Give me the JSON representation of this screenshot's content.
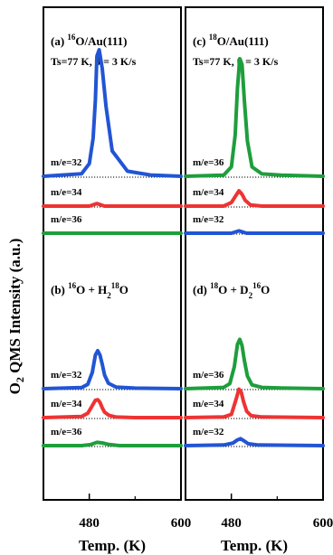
{
  "ylabel_main": "O",
  "ylabel_sub": "2",
  "ylabel_rest": " QMS Intensity (a.u.)",
  "chart_data": [
    {
      "type": "line",
      "figure_panel": "a",
      "title_parts": [
        "(a) ",
        "16",
        "O/Au(111)"
      ],
      "subtitle": "Ts=77 K, β = 3 K/s",
      "xlabel": "Temp. (K)",
      "xlim": [
        420,
        600
      ],
      "xticks": [
        "480",
        "600"
      ],
      "y_units": "arbitrary (a.u.)",
      "series": [
        {
          "name": "m/e=32",
          "color": "#2255d4",
          "baseline": 0,
          "x": [
            420,
            470,
            480,
            485,
            488,
            490,
            493,
            497,
            502,
            510,
            530,
            560,
            600
          ],
          "values": [
            0.0,
            0.02,
            0.1,
            0.3,
            0.6,
            0.95,
            1.0,
            0.85,
            0.55,
            0.2,
            0.04,
            0.01,
            0.0
          ]
        },
        {
          "name": "m/e=34",
          "color": "#ee3333",
          "baseline": 0,
          "x": [
            420,
            480,
            490,
            500,
            600
          ],
          "values": [
            0.0,
            0.0,
            0.02,
            0.0,
            0.0
          ]
        },
        {
          "name": "m/e=36",
          "color": "#1e9e3c",
          "baseline": 0,
          "x": [
            420,
            600
          ],
          "values": [
            0.0,
            0.0
          ]
        }
      ]
    },
    {
      "type": "line",
      "figure_panel": "b",
      "title_parts": [
        "(b) ",
        "16",
        "O + H",
        "2",
        "18",
        "O"
      ],
      "xlabel": "Temp. (K)",
      "xlim": [
        420,
        600
      ],
      "xticks": [
        "480",
        "600"
      ],
      "y_units": "arbitrary (a.u.)",
      "series": [
        {
          "name": "m/e=32",
          "color": "#2255d4",
          "baseline": 0,
          "x": [
            420,
            470,
            478,
            484,
            488,
            491,
            494,
            497,
            500,
            505,
            515,
            540,
            600
          ],
          "values": [
            0.0,
            0.02,
            0.08,
            0.3,
            0.62,
            0.7,
            0.62,
            0.45,
            0.25,
            0.1,
            0.03,
            0.01,
            0.0
          ]
        },
        {
          "name": "m/e=34",
          "color": "#ee3333",
          "baseline": 0,
          "x": [
            420,
            470,
            478,
            484,
            488,
            491,
            494,
            497,
            500,
            506,
            515,
            540,
            600
          ],
          "values": [
            0.0,
            0.02,
            0.08,
            0.22,
            0.32,
            0.33,
            0.28,
            0.18,
            0.1,
            0.04,
            0.01,
            0.0,
            0.0
          ]
        },
        {
          "name": "m/e=36",
          "color": "#1e9e3c",
          "baseline": 0,
          "x": [
            420,
            470,
            482,
            490,
            497,
            506,
            520,
            600
          ],
          "values": [
            0.0,
            0.0,
            0.02,
            0.06,
            0.05,
            0.02,
            0.0,
            0.0
          ]
        }
      ]
    },
    {
      "type": "line",
      "figure_panel": "c",
      "title_parts": [
        "(c) ",
        "18",
        "O/Au(111)"
      ],
      "subtitle": "Ts=77 K, β = 3 K/s",
      "xlabel": "Temp. (K)",
      "xlim": [
        420,
        600
      ],
      "xticks": [
        "480",
        "600"
      ],
      "y_units": "arbitrary (a.u.)",
      "series": [
        {
          "name": "m/e=36",
          "color": "#1e9e3c",
          "baseline": 0,
          "x": [
            420,
            470,
            480,
            485,
            488,
            491,
            494,
            497,
            501,
            507,
            520,
            545,
            600
          ],
          "values": [
            0.0,
            0.01,
            0.08,
            0.35,
            0.75,
            1.0,
            0.95,
            0.65,
            0.3,
            0.08,
            0.02,
            0.01,
            0.0
          ]
        },
        {
          "name": "m/e=34",
          "color": "#ee3333",
          "baseline": 0,
          "x": [
            420,
            470,
            480,
            486,
            490,
            494,
            498,
            505,
            520,
            600
          ],
          "values": [
            0.0,
            0.0,
            0.03,
            0.09,
            0.13,
            0.1,
            0.05,
            0.01,
            0.0,
            0.0
          ]
        },
        {
          "name": "m/e=32",
          "color": "#2255d4",
          "baseline": 0,
          "x": [
            420,
            480,
            490,
            500,
            600
          ],
          "values": [
            0.0,
            0.0,
            0.02,
            0.0,
            0.0
          ]
        }
      ]
    },
    {
      "type": "line",
      "figure_panel": "d",
      "title_parts": [
        "(d) ",
        "18",
        "O + D",
        "2",
        "16",
        "O"
      ],
      "xlabel": "Temp. (K)",
      "xlim": [
        420,
        600
      ],
      "xticks": [
        "480",
        "600"
      ],
      "y_units": "arbitrary (a.u.)",
      "series": [
        {
          "name": "m/e=36",
          "color": "#1e9e3c",
          "baseline": 0,
          "x": [
            420,
            470,
            478,
            484,
            488,
            491,
            494,
            497,
            501,
            507,
            520,
            545,
            600
          ],
          "values": [
            0.0,
            0.02,
            0.08,
            0.35,
            0.7,
            0.78,
            0.68,
            0.45,
            0.2,
            0.06,
            0.02,
            0.01,
            0.0
          ]
        },
        {
          "name": "m/e=34",
          "color": "#ee3333",
          "baseline": 0,
          "x": [
            420,
            470,
            480,
            486,
            490,
            493,
            496,
            500,
            506,
            520,
            600
          ],
          "values": [
            0.0,
            0.01,
            0.05,
            0.28,
            0.45,
            0.4,
            0.25,
            0.1,
            0.03,
            0.01,
            0.0
          ]
        },
        {
          "name": "m/e=32",
          "color": "#2255d4",
          "baseline": 0,
          "x": [
            420,
            470,
            482,
            488,
            492,
            496,
            502,
            515,
            600
          ],
          "values": [
            0.0,
            0.01,
            0.04,
            0.09,
            0.11,
            0.08,
            0.03,
            0.01,
            0.0
          ]
        }
      ]
    }
  ]
}
